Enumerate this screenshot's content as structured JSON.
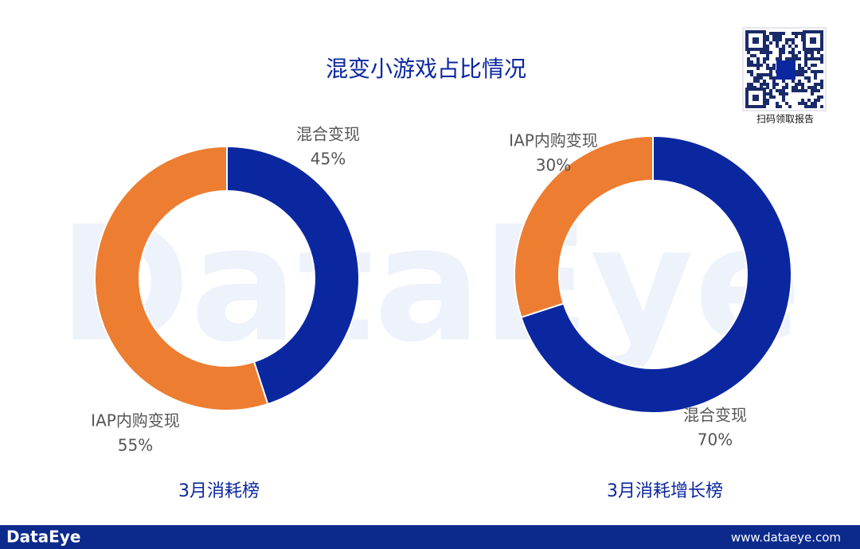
{
  "title": "混变小游戏占比情况",
  "watermark": "DataEye",
  "qr_caption": "扫码领取报告",
  "footer": {
    "brand": "DataEye",
    "url": "www.dataeye.com"
  },
  "chart_data": [
    {
      "type": "pie",
      "subtitle": "3月消耗榜",
      "categories": [
        "混合变现",
        "IAP内购变现"
      ],
      "values": [
        45,
        55
      ],
      "value_labels": [
        "45%",
        "55%"
      ],
      "colors": [
        "#0b27a0",
        "#ed7d31"
      ]
    },
    {
      "type": "pie",
      "subtitle": "3月消耗增长榜",
      "categories": [
        "混合变现",
        "IAP内购变现"
      ],
      "values": [
        70,
        30
      ],
      "value_labels": [
        "70%",
        "30%"
      ],
      "colors": [
        "#0b27a0",
        "#ed7d31"
      ]
    }
  ]
}
